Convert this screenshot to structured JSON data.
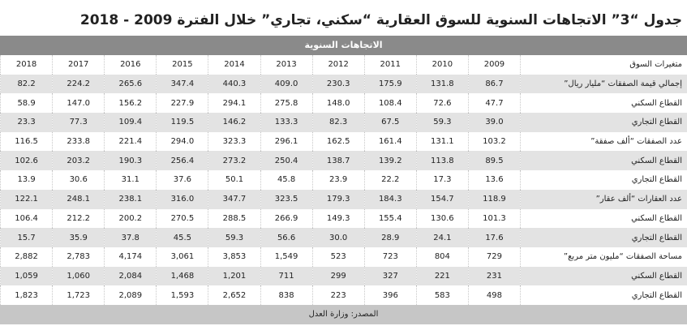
{
  "title": "جدول “3” الاتجاهات السنوية للسوق العقارية “سكني، تجاري” خلال الفترة 2009 - 2018",
  "table": {
    "section_header": "الاتجاهات السنوية",
    "columns": [
      "متغيرات السوق",
      "2009",
      "2010",
      "2011",
      "2012",
      "2013",
      "2014",
      "2015",
      "2016",
      "2017",
      "2018"
    ],
    "rows": [
      [
        "إجمالي قيمة الصفقات “مليار ريال”",
        "86.7",
        "131.8",
        "175.9",
        "230.3",
        "409.0",
        "440.3",
        "347.4",
        "265.6",
        "224.2",
        "82.2"
      ],
      [
        "القطاع السكني",
        "47.7",
        "72.6",
        "108.4",
        "148.0",
        "275.8",
        "294.1",
        "227.9",
        "156.2",
        "147.0",
        "58.9"
      ],
      [
        "القطاع التجاري",
        "39.0",
        "59.3",
        "67.5",
        "82.3",
        "133.3",
        "146.2",
        "119.5",
        "109.4",
        "77.3",
        "23.3"
      ],
      [
        "عدد الصفقات “ألف صفقة”",
        "103.2",
        "131.1",
        "161.4",
        "162.5",
        "296.1",
        "323.3",
        "294.0",
        "221.4",
        "233.8",
        "116.5"
      ],
      [
        "القطاع السكني",
        "89.5",
        "113.8",
        "139.2",
        "138.7",
        "250.4",
        "273.2",
        "256.4",
        "190.3",
        "203.2",
        "102.6"
      ],
      [
        "القطاع التجاري",
        "13.6",
        "17.3",
        "22.2",
        "23.9",
        "45.8",
        "50.1",
        "37.6",
        "31.1",
        "30.6",
        "13.9"
      ],
      [
        "عدد العقارات “ألف عقار”",
        "118.9",
        "154.7",
        "184.3",
        "179.3",
        "323.5",
        "347.7",
        "316.0",
        "238.1",
        "248.1",
        "122.1"
      ],
      [
        "القطاع السكني",
        "101.3",
        "130.6",
        "155.4",
        "149.3",
        "266.9",
        "288.5",
        "270.5",
        "200.2",
        "212.2",
        "106.4"
      ],
      [
        "القطاع التجاري",
        "17.6",
        "24.1",
        "28.9",
        "30.0",
        "56.6",
        "59.3",
        "45.5",
        "37.8",
        "35.9",
        "15.7"
      ],
      [
        "مساحة الصفقات “مليون متر مربع”",
        "729",
        "804",
        "723",
        "523",
        "1,549",
        "3,853",
        "3,061",
        "4,174",
        "2,783",
        "2,882"
      ],
      [
        "القطاع السكني",
        "231",
        "221",
        "327",
        "299",
        "711",
        "1,201",
        "1,468",
        "2,084",
        "1,060",
        "1,059"
      ],
      [
        "القطاع التجاري",
        "498",
        "583",
        "396",
        "223",
        "838",
        "2,652",
        "1,593",
        "2,089",
        "1,723",
        "1,823"
      ]
    ],
    "footer": "المصدر: وزارة العدل"
  }
}
